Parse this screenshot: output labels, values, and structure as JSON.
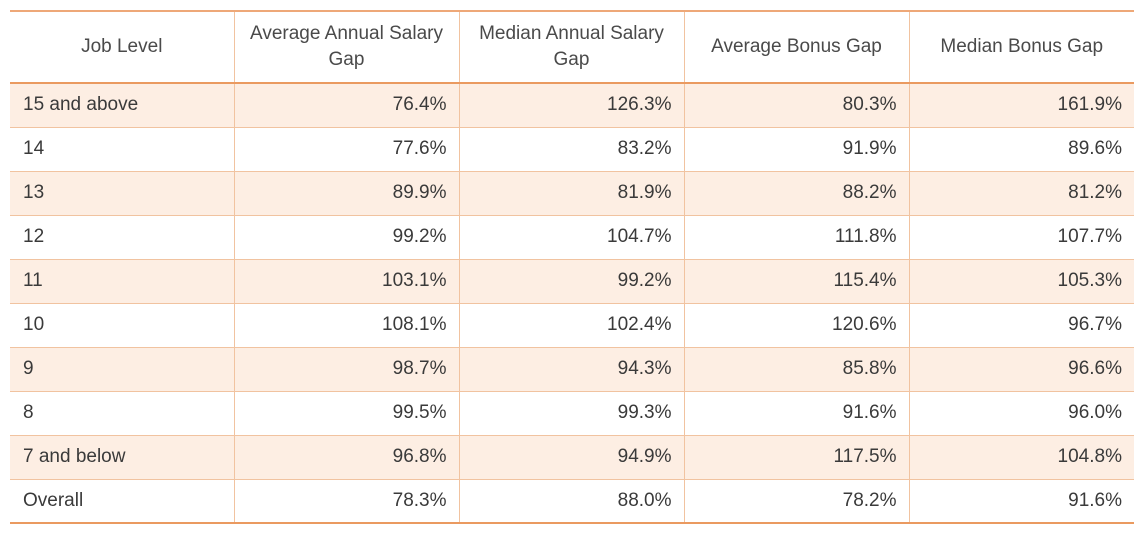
{
  "table": {
    "headers": [
      "Job Level",
      "Average Annual Salary Gap",
      "Median Annual Salary Gap",
      "Average Bonus Gap",
      "Median Bonus Gap"
    ],
    "rows": [
      [
        "15 and above",
        "76.4%",
        "126.3%",
        "80.3%",
        "161.9%"
      ],
      [
        "14",
        "77.6%",
        "83.2%",
        "91.9%",
        "89.6%"
      ],
      [
        "13",
        "89.9%",
        "81.9%",
        "88.2%",
        "81.2%"
      ],
      [
        "12",
        "99.2%",
        "104.7%",
        "111.8%",
        "107.7%"
      ],
      [
        "11",
        "103.1%",
        "99.2%",
        "115.4%",
        "105.3%"
      ],
      [
        "10",
        "108.1%",
        "102.4%",
        "120.6%",
        "96.7%"
      ],
      [
        "9",
        "98.7%",
        "94.3%",
        "85.8%",
        "96.6%"
      ],
      [
        "8",
        "99.5%",
        "99.3%",
        "91.6%",
        "96.0%"
      ],
      [
        "7 and below",
        "96.8%",
        "94.9%",
        "117.5%",
        "104.8%"
      ],
      [
        "Overall",
        "78.3%",
        "88.0%",
        "78.2%",
        "91.6%"
      ]
    ]
  },
  "colors": {
    "accent_border": "#ea9a60",
    "row_shade": "#fdeee3",
    "grid_line": "#f1c3a0"
  }
}
